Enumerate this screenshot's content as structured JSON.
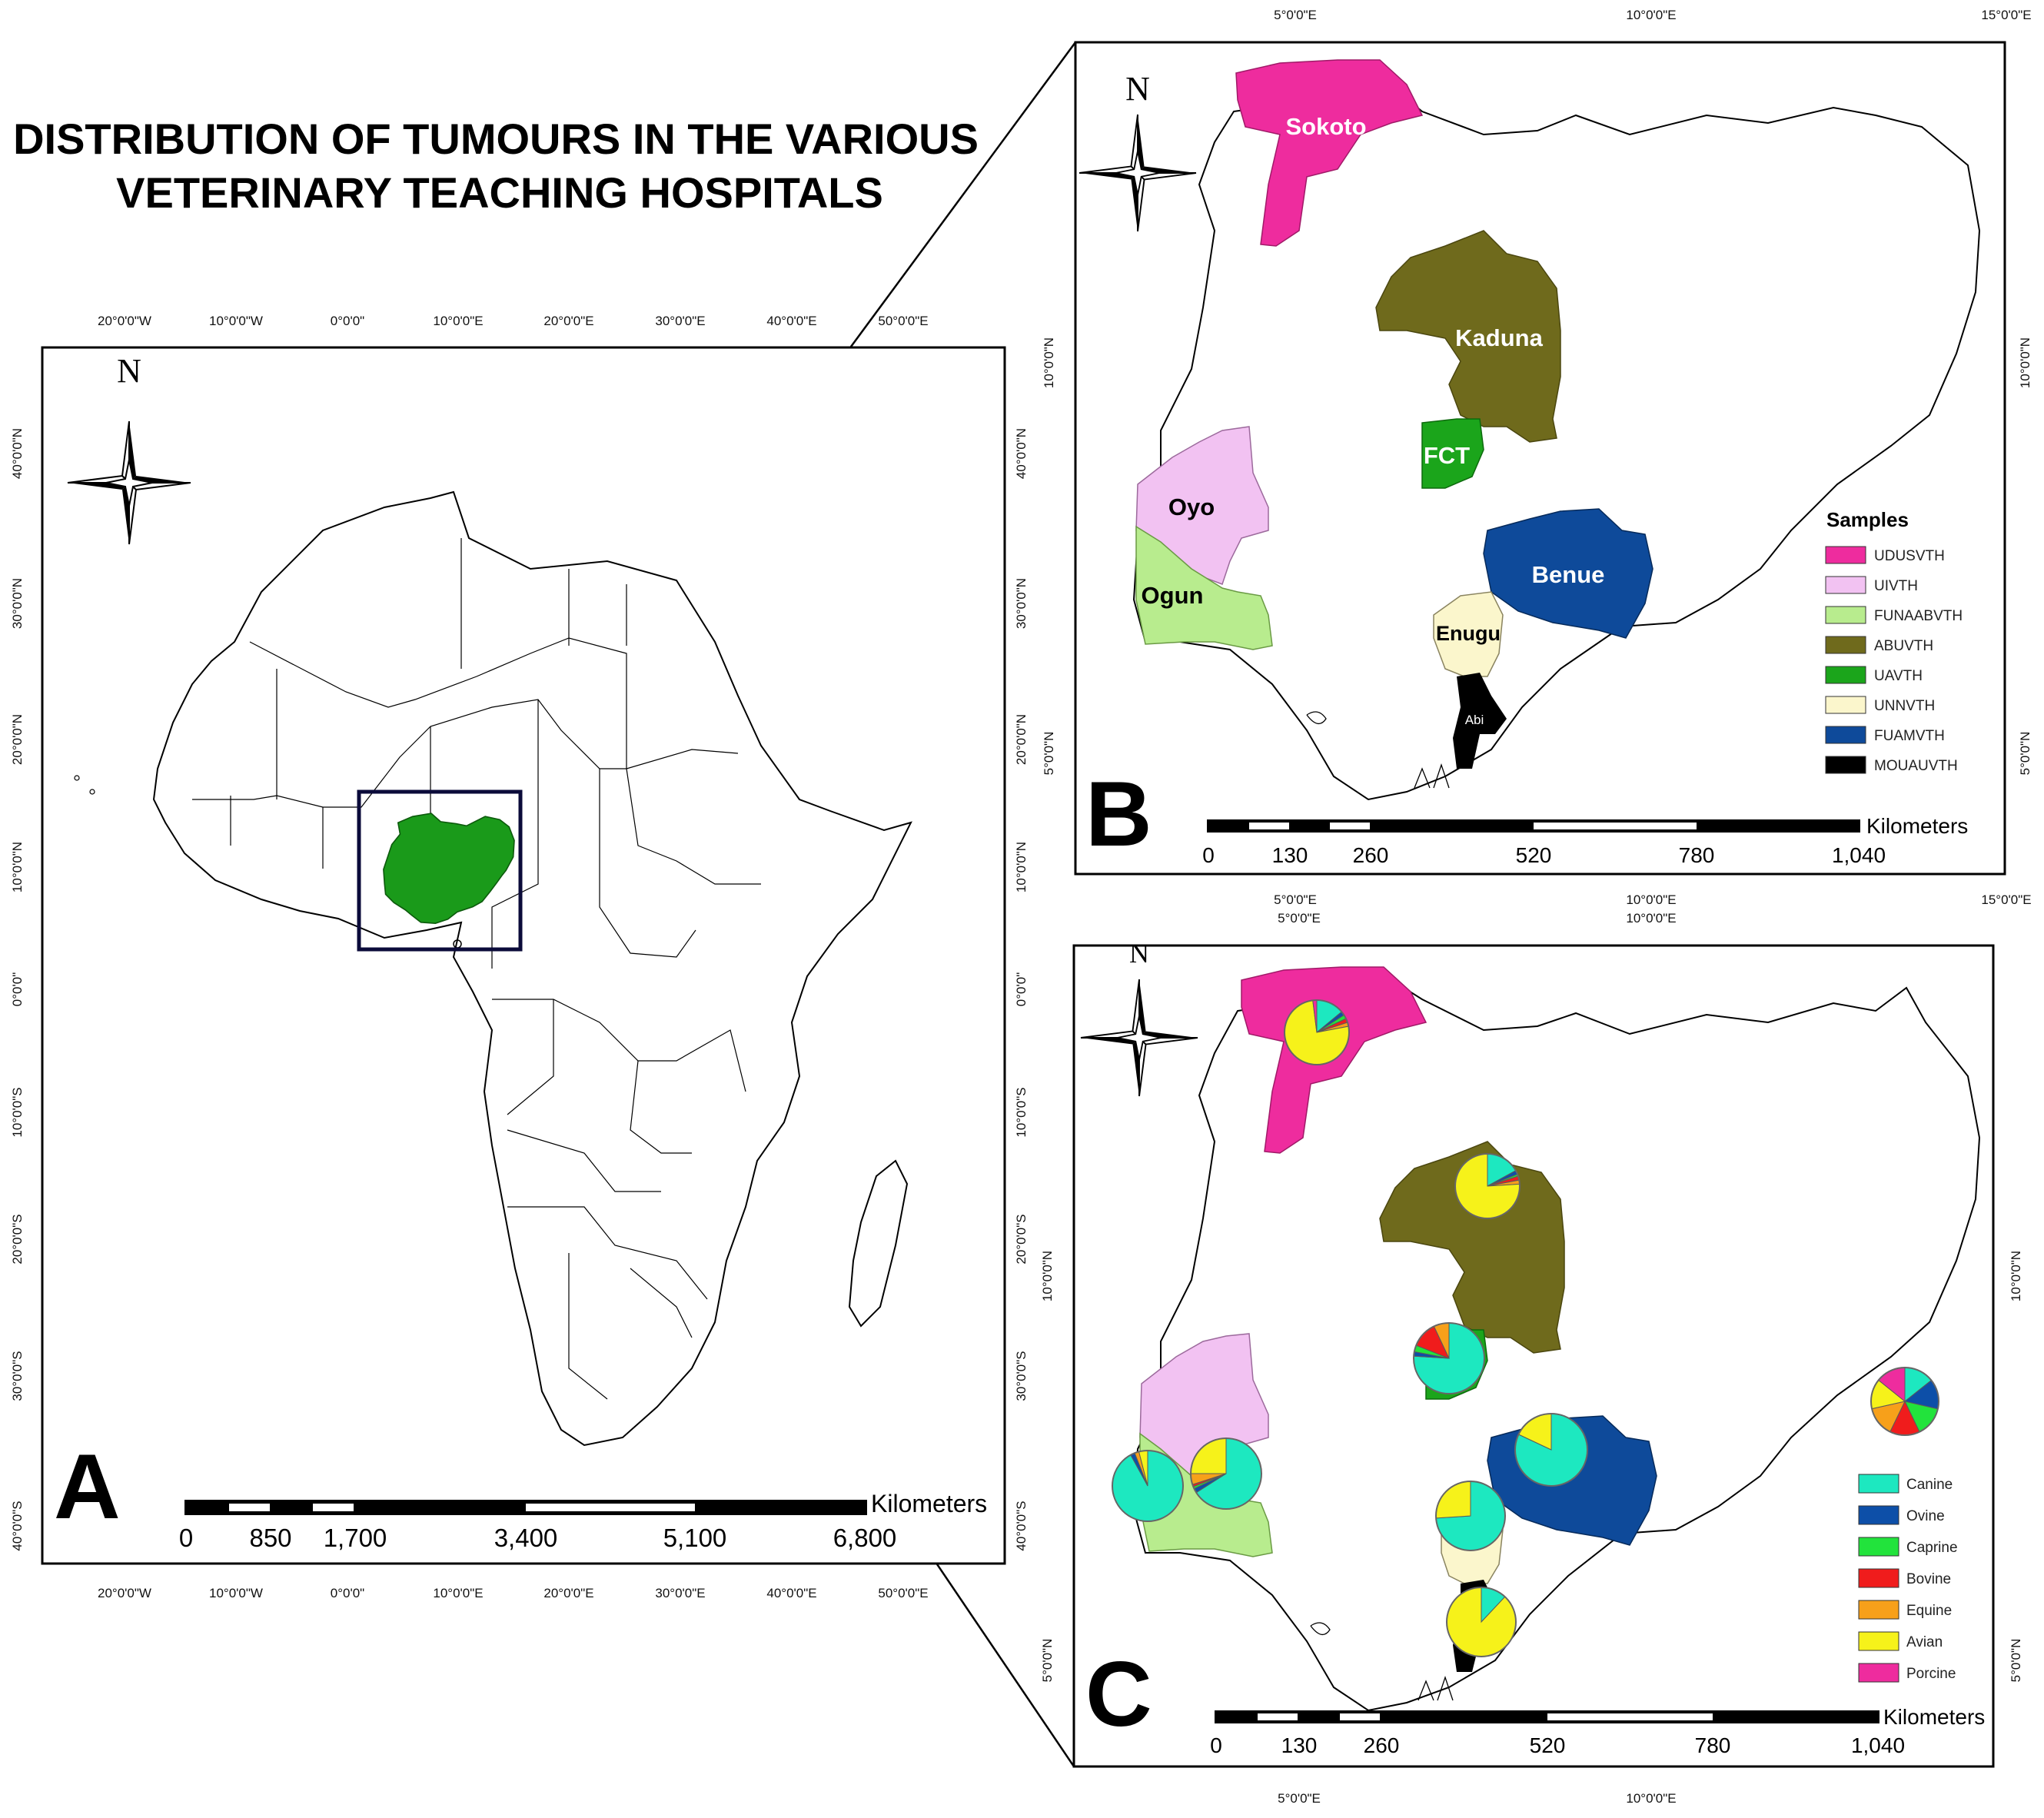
{
  "title_line1": "DISTRIBUTION OF TUMOURS IN THE VARIOUS",
  "title_line2": "VETERINARY TEACHING HOSPITALS",
  "north": "N",
  "panels": {
    "a": {
      "label": "A",
      "lon_ticks": [
        "20°0'0\"W",
        "10°0'0\"W",
        "0°0'0\"",
        "10°0'0\"E",
        "20°0'0\"E",
        "30°0'0\"E",
        "40°0'0\"E",
        "50°0'0\"E"
      ],
      "lat_ticks": [
        "40°0'0\"N",
        "30°0'0\"N",
        "20°0'0\"N",
        "10°0'0\"N",
        "0°0'0\"",
        "10°0'0\"S",
        "20°0'0\"S",
        "30°0'0\"S",
        "40°0'0\"S"
      ],
      "scale": {
        "numbers": [
          "0",
          "850",
          "1,700",
          "3,400",
          "5,100",
          "6,800"
        ],
        "unit": "Kilometers"
      }
    },
    "b": {
      "label": "B",
      "lon_ticks": [
        "5°0'0\"E",
        "10°0'0\"E",
        "15°0'0\"E"
      ],
      "lat_ticks": [
        "10°0'0\"N",
        "5°0'0\"N"
      ],
      "scale": {
        "numbers": [
          "0",
          "130",
          "260",
          "520",
          "780",
          "1,040"
        ],
        "unit": "Kilometers"
      },
      "state_labels": [
        "Sokoto",
        "Kaduna",
        "FCT",
        "Oyo",
        "Ogun",
        "Benue",
        "Enugu",
        "Abi"
      ],
      "legend": {
        "title": "Samples",
        "items": [
          {
            "label": "UDUSVTH",
            "color": "#ee2c9e"
          },
          {
            "label": "UIVTH",
            "color": "#f2c2f2"
          },
          {
            "label": "FUNAABVTH",
            "color": "#b8ec8e"
          },
          {
            "label": "ABUVTH",
            "color": "#6f6a1c"
          },
          {
            "label": "UAVTH",
            "color": "#1ba51b"
          },
          {
            "label": "UNNVTH",
            "color": "#fbf6cc"
          },
          {
            "label": "FUAMVTH",
            "color": "#0e4a9a"
          },
          {
            "label": "MOUAUVTH",
            "color": "#000000"
          }
        ]
      }
    },
    "c": {
      "label": "C",
      "lon_ticks": [
        "5°0'0\"E",
        "10°0'0\"E"
      ],
      "lat_ticks": [
        "10°0'0\"N",
        "5°0'0\"N"
      ],
      "scale": {
        "numbers": [
          "0",
          "130",
          "260",
          "520",
          "780",
          "1,040"
        ],
        "unit": "Kilometers"
      },
      "legend": {
        "items": [
          {
            "label": "Canine",
            "color": "#1de8c0"
          },
          {
            "label": "Ovine",
            "color": "#0d4fa8"
          },
          {
            "label": "Caprine",
            "color": "#22e33c"
          },
          {
            "label": "Bovine",
            "color": "#f01c1c"
          },
          {
            "label": "Equine",
            "color": "#f7a01a"
          },
          {
            "label": "Avian",
            "color": "#f6f21a"
          },
          {
            "label": "Porcine",
            "color": "#ee2c9e"
          }
        ]
      },
      "pies": [
        {
          "hospital": "UDUSVTH",
          "shares": [
            0.14,
            0.02,
            0.02,
            0.02,
            0.02,
            0.76,
            0.02
          ]
        },
        {
          "hospital": "ABUVTH",
          "shares": [
            0.17,
            0.02,
            0.01,
            0.02,
            0.02,
            0.76,
            0.0
          ]
        },
        {
          "hospital": "UAVTH",
          "shares": [
            0.76,
            0.02,
            0.03,
            0.12,
            0.07,
            0.0,
            0.0
          ]
        },
        {
          "hospital": "UIVTH",
          "shares": [
            0.66,
            0.02,
            0.01,
            0.01,
            0.05,
            0.25,
            0.0
          ]
        },
        {
          "hospital": "FUNAABVTH",
          "shares": [
            0.92,
            0.02,
            0.0,
            0.0,
            0.02,
            0.04,
            0.0
          ]
        },
        {
          "hospital": "FUAMVTH",
          "shares": [
            0.82,
            0.0,
            0.0,
            0.0,
            0.0,
            0.18,
            0.0
          ]
        },
        {
          "hospital": "UNNVTH",
          "shares": [
            0.74,
            0.0,
            0.0,
            0.0,
            0.0,
            0.26,
            0.0
          ]
        },
        {
          "hospital": "MOUAUVTH",
          "shares": [
            0.12,
            0.0,
            0.0,
            0.0,
            0.0,
            0.88,
            0.0
          ]
        },
        {
          "hospital": "key",
          "shares": [
            0.143,
            0.143,
            0.143,
            0.143,
            0.143,
            0.143,
            0.142
          ]
        }
      ]
    }
  }
}
